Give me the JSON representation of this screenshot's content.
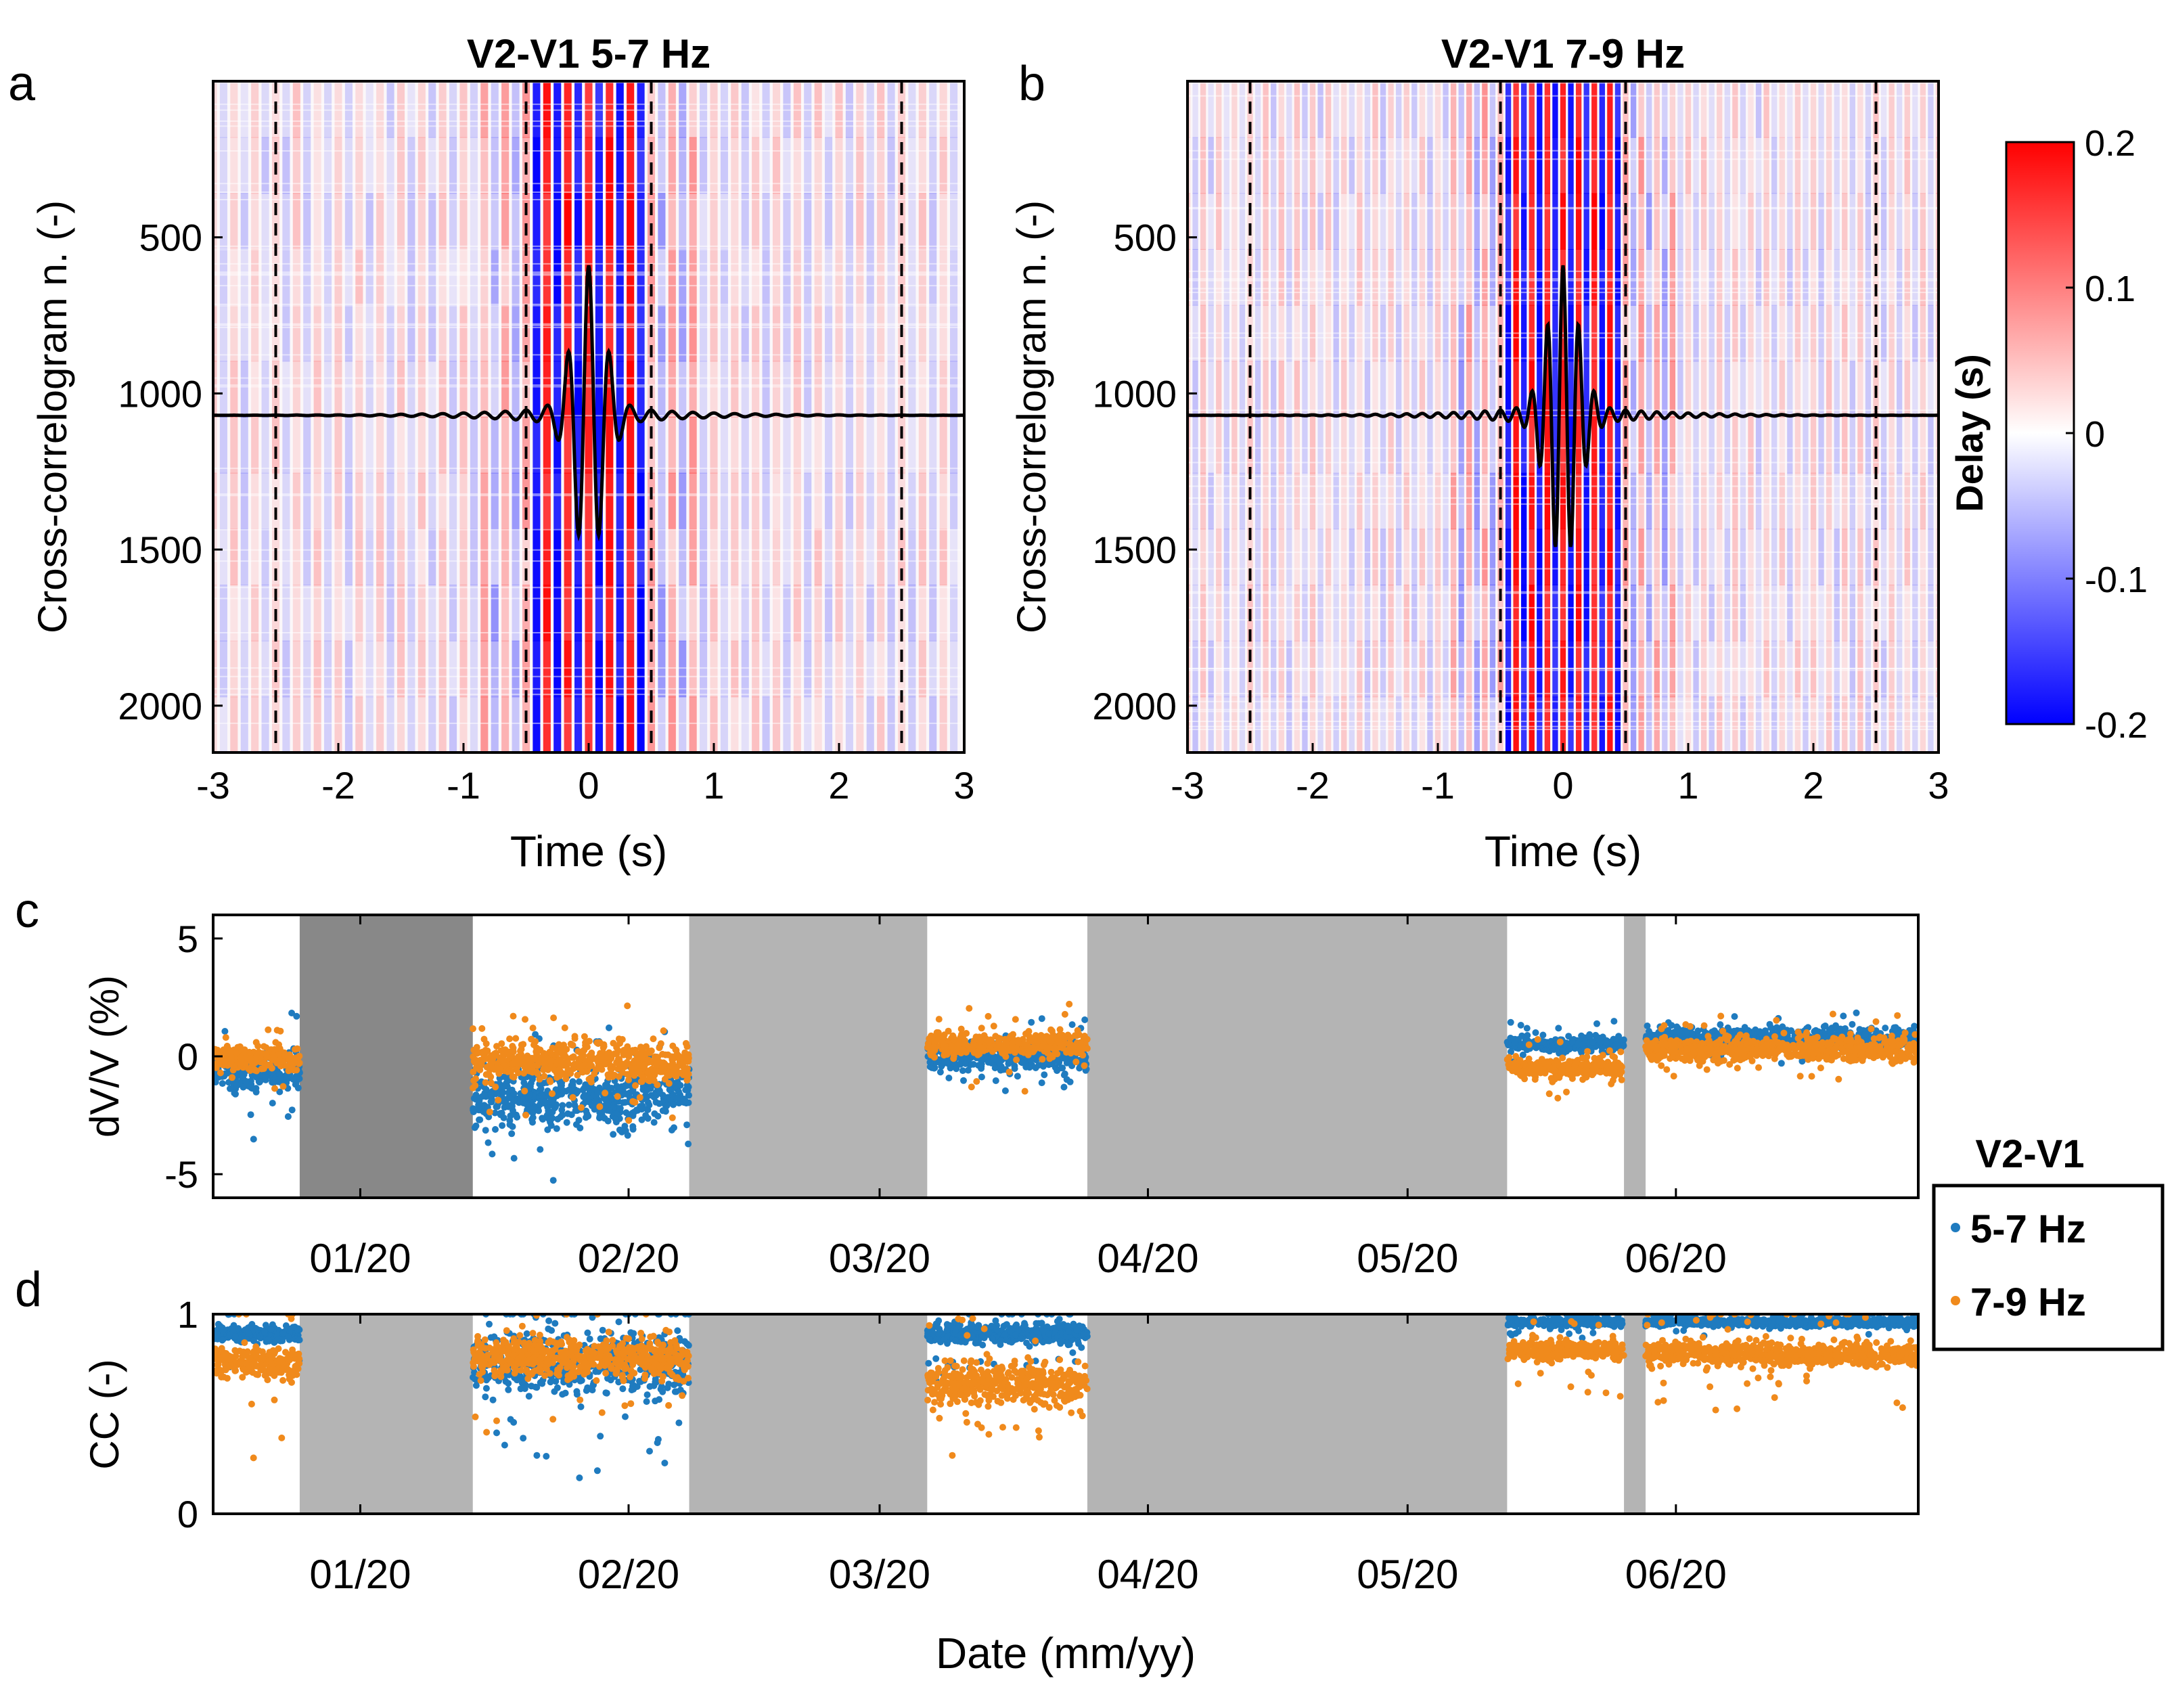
{
  "figure": {
    "colors": {
      "red": "#ff0000",
      "blue": "#0000ff",
      "orange": "#f08a1c",
      "steelblue": "#1f7bbf",
      "gray_light": "#b4b4b4",
      "gray_dark": "#888888"
    }
  },
  "chart_data": [
    {
      "panel_letter": "a",
      "type": "heatmap",
      "title": "V2-V1  5-7 Hz",
      "xlabel": "Time (s)",
      "ylabel": "Cross-correlogram n. (-)",
      "xlim": [
        -3,
        3
      ],
      "ylim": [
        2150,
        0
      ],
      "xticks": [
        "-3",
        "-2",
        "-1",
        "0",
        "1",
        "2",
        "3"
      ],
      "yticks": [
        "500",
        "1000",
        "1500",
        "2000"
      ],
      "ytick_values": [
        500,
        1000,
        1500,
        2000
      ],
      "dashed_lines_x": [
        -2.5,
        -0.5,
        0.5,
        2.5
      ],
      "overlay_waveform": {
        "baseline": 1070,
        "peak_amplitude": 480,
        "frequency_hz": 6
      }
    },
    {
      "panel_letter": "b",
      "type": "heatmap",
      "title": "V2-V1  7-9 Hz",
      "xlabel": "Time (s)",
      "ylabel": "Cross-correlogram n. (-)",
      "xlim": [
        -3,
        3
      ],
      "ylim": [
        2150,
        0
      ],
      "xticks": [
        "-3",
        "-2",
        "-1",
        "0",
        "1",
        "2",
        "3"
      ],
      "yticks": [
        "500",
        "1000",
        "1500",
        "2000"
      ],
      "ytick_values": [
        500,
        1000,
        1500,
        2000
      ],
      "dashed_lines_x": [
        -2.5,
        -0.5,
        0.5,
        2.5
      ],
      "overlay_waveform": {
        "baseline": 1070,
        "peak_amplitude": 480,
        "frequency_hz": 8
      },
      "colorbar": {
        "label": "Delay (s)",
        "range": [
          -0.2,
          0.2
        ],
        "ticks": [
          "0.2",
          "0.1",
          "0",
          "-0.1",
          "-0.2"
        ],
        "tick_values": [
          0.2,
          0.1,
          0,
          -0.1,
          -0.2
        ]
      }
    },
    {
      "panel_letter": "c",
      "type": "scatter",
      "xlabel": "",
      "ylabel": "dV/V (%)",
      "ylim": [
        -6,
        6
      ],
      "yticks": [
        "5",
        "0",
        "-5"
      ],
      "ytick_values": [
        5,
        0,
        -5
      ],
      "xlim_days": [
        0,
        197
      ],
      "xticks": [
        "01/20",
        "02/20",
        "03/20",
        "04/20",
        "05/20",
        "06/20"
      ],
      "xtick_days": [
        17,
        48,
        77,
        108,
        138,
        169
      ],
      "gaps_days": [
        [
          10,
          30,
          "dark"
        ],
        [
          55,
          82.5,
          "light"
        ],
        [
          101,
          149.5,
          "light"
        ],
        [
          163,
          165.5,
          "light"
        ]
      ],
      "series": [
        {
          "name": "5-7 Hz",
          "color": "#1f7bbf",
          "segments": [
            [
              0,
              10,
              -0.6,
              0.8,
              2.0
            ],
            [
              30,
              55,
              -1.8,
              1.2,
              2.0
            ],
            [
              82.5,
              101,
              0.0,
              0.6,
              1.0
            ],
            [
              149.5,
              163,
              0.5,
              0.3,
              0.6
            ],
            [
              165.5,
              197,
              0.8,
              0.4,
              0.6
            ]
          ]
        },
        {
          "name": "7-9 Hz",
          "color": "#f08a1c",
          "segments": [
            [
              0,
              10,
              -0.1,
              0.5,
              0.8
            ],
            [
              30,
              55,
              -0.2,
              0.8,
              1.5
            ],
            [
              82.5,
              101,
              0.5,
              0.5,
              1.0
            ],
            [
              149.5,
              163,
              -0.5,
              0.4,
              0.8
            ],
            [
              165.5,
              197,
              0.3,
              0.5,
              0.8
            ]
          ]
        }
      ],
      "legend": {
        "title": "V2-V1",
        "entries": [
          "5-7 Hz",
          "7-9 Hz"
        ],
        "placement": "right"
      }
    },
    {
      "panel_letter": "d",
      "type": "scatter",
      "xlabel": "Date (mm/yy)",
      "ylabel": "CC (-)",
      "ylim": [
        0,
        1
      ],
      "yticks": [
        "1",
        "0"
      ],
      "ytick_values": [
        1,
        0
      ],
      "xlim_days": [
        0,
        197
      ],
      "xticks": [
        "01/20",
        "02/20",
        "03/20",
        "04/20",
        "05/20",
        "06/20"
      ],
      "xtick_days": [
        17,
        48,
        77,
        108,
        138,
        169
      ],
      "gaps_days": [
        [
          10,
          30,
          "light"
        ],
        [
          55,
          82.5,
          "light"
        ],
        [
          101,
          149.5,
          "light"
        ],
        [
          163,
          165.5,
          "light"
        ]
      ],
      "series": [
        {
          "name": "5-7 Hz",
          "color": "#1f7bbf",
          "segments": [
            [
              0,
              10,
              0.9,
              0.04,
              0.15
            ],
            [
              30,
              55,
              0.75,
              0.15,
              0.35
            ],
            [
              82.5,
              101,
              0.9,
              0.05,
              0.15
            ],
            [
              149.5,
              163,
              0.96,
              0.02,
              0.05
            ],
            [
              165.5,
              197,
              0.96,
              0.02,
              0.05
            ]
          ]
        },
        {
          "name": "7-9 Hz",
          "color": "#f08a1c",
          "segments": [
            [
              0,
              10,
              0.75,
              0.08,
              0.3
            ],
            [
              30,
              55,
              0.78,
              0.1,
              0.3
            ],
            [
              82.5,
              101,
              0.65,
              0.1,
              0.2
            ],
            [
              149.5,
              163,
              0.82,
              0.05,
              0.15
            ],
            [
              165.5,
              197,
              0.8,
              0.06,
              0.2
            ]
          ]
        }
      ]
    }
  ]
}
